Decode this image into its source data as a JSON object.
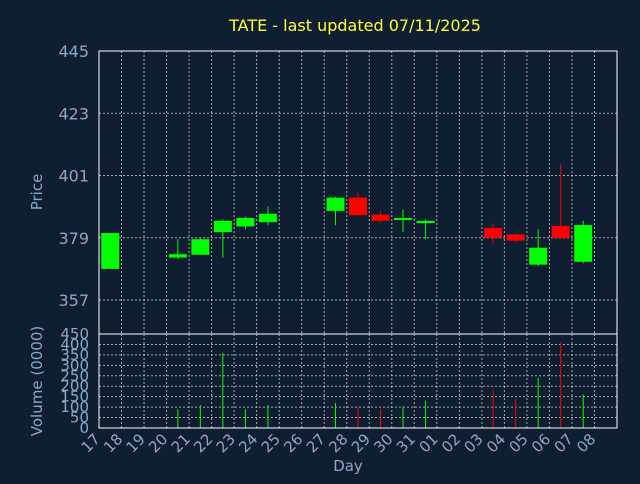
{
  "chart_data": {
    "type": "candlestick",
    "title": "TATE - last updated 07/11/2025",
    "xlabel": "Day",
    "ylabel": "Price",
    "volume_ylabel": "Volume (0000)",
    "colors": {
      "background": "#0f1e30",
      "title": "#ffff33",
      "axis_text": "#8aa8c8",
      "frame": "#ffffff",
      "grid": "#cccccc",
      "up": "#00ff00",
      "down": "#ff0000"
    },
    "price_axis": {
      "ylim": [
        345,
        445
      ],
      "ticks": [
        357,
        379,
        401,
        423,
        445
      ]
    },
    "volume_axis": {
      "ylim": [
        0,
        450
      ],
      "ticks": [
        0,
        50,
        100,
        150,
        200,
        250,
        300,
        350,
        400,
        450
      ]
    },
    "days": [
      "17",
      "18",
      "19",
      "20",
      "21",
      "22",
      "23",
      "24",
      "25",
      "26",
      "27",
      "28",
      "29",
      "30",
      "31",
      "01",
      "02",
      "03",
      "04",
      "05",
      "06",
      "07",
      "08"
    ],
    "candles": [
      {
        "day": "17",
        "open": 368,
        "high": 380.7,
        "low": 368,
        "close": 380.7,
        "volume": 0
      },
      {
        "day": "20",
        "open": 372,
        "high": 378.5,
        "low": 371.5,
        "close": 373.2,
        "volume": 90
      },
      {
        "day": "21",
        "open": 373,
        "high": 379,
        "low": 373,
        "close": 378.5,
        "volume": 110
      },
      {
        "day": "22",
        "open": 381,
        "high": 385.5,
        "low": 372,
        "close": 385,
        "volume": 360
      },
      {
        "day": "23",
        "open": 383,
        "high": 386.5,
        "low": 382,
        "close": 386,
        "volume": 90
      },
      {
        "day": "24",
        "open": 384.5,
        "high": 390,
        "low": 383.5,
        "close": 387.5,
        "volume": 110
      },
      {
        "day": "27",
        "open": 388.5,
        "high": 393.5,
        "low": 383.5,
        "close": 393.2,
        "volume": 120
      },
      {
        "day": "28",
        "open": 393.2,
        "high": 395,
        "low": 386.8,
        "close": 387,
        "volume": 100
      },
      {
        "day": "29",
        "open": 387.2,
        "high": 388.5,
        "low": 384.5,
        "close": 385,
        "volume": 90
      },
      {
        "day": "30",
        "open": 385.5,
        "high": 389,
        "low": 381,
        "close": 386,
        "volume": 100
      },
      {
        "day": "31",
        "open": 384.2,
        "high": 385.5,
        "low": 378.5,
        "close": 385,
        "volume": 130
      },
      {
        "day": "03",
        "open": 382.5,
        "high": 384,
        "low": 377,
        "close": 379,
        "volume": 180
      },
      {
        "day": "04",
        "open": 380.2,
        "high": 380.5,
        "low": 377.5,
        "close": 378,
        "volume": 140
      },
      {
        "day": "05",
        "open": 369.5,
        "high": 382,
        "low": 369,
        "close": 375.5,
        "volume": 240
      },
      {
        "day": "06",
        "open": 383.2,
        "high": 405,
        "low": 378.5,
        "close": 379,
        "volume": 410
      },
      {
        "day": "07",
        "open": 370.5,
        "high": 385,
        "low": 370,
        "close": 383.5,
        "volume": 160
      }
    ]
  }
}
